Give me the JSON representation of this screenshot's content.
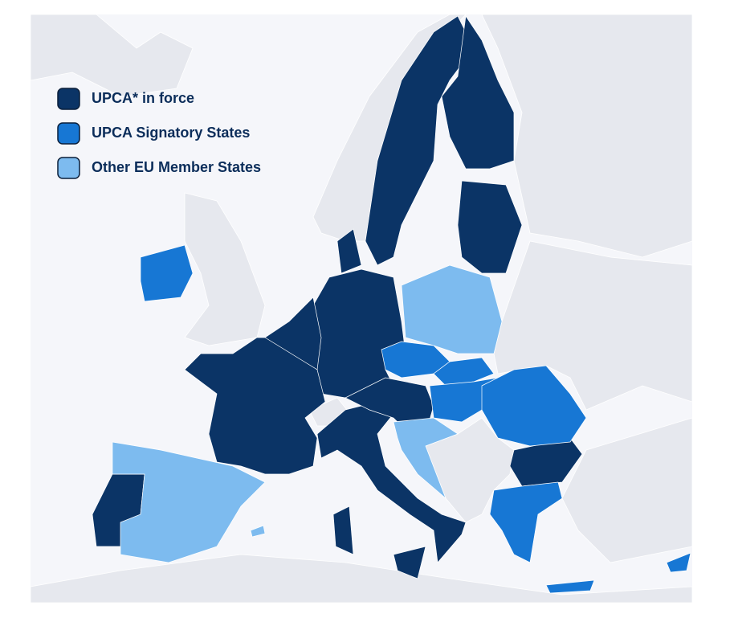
{
  "legend": {
    "items": [
      {
        "label": "UPCA* in force",
        "color": "#0b3466"
      },
      {
        "label": "UPCA Signatory States",
        "color": "#1777d4"
      },
      {
        "label": "Other EU Member States",
        "color": "#7dbbef"
      }
    ]
  }
}
